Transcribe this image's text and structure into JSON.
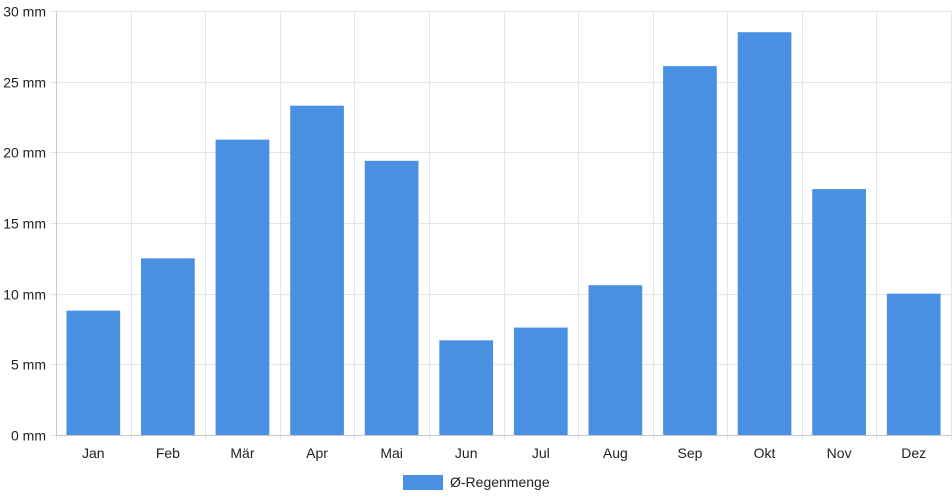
{
  "chart_data": {
    "type": "bar",
    "categories": [
      "Jan",
      "Feb",
      "Mär",
      "Apr",
      "Mai",
      "Jun",
      "Jul",
      "Aug",
      "Sep",
      "Okt",
      "Nov",
      "Dez"
    ],
    "series": [
      {
        "name": "Ø-Regenmenge",
        "values": [
          8.8,
          12.5,
          20.9,
          23.3,
          19.4,
          6.7,
          7.6,
          10.6,
          26.1,
          28.5,
          17.4,
          10.0
        ]
      }
    ],
    "y_ticks": [
      "0 mm",
      "5 mm",
      "10 mm",
      "15 mm",
      "20 mm",
      "25 mm",
      "30 mm"
    ],
    "ylim": [
      0,
      30
    ],
    "grid": true,
    "legend_position": "bottom-center",
    "colors": {
      "bar": "#4a90e2",
      "grid": "#e5e5e5",
      "axis": "#c8c8c8",
      "text": "#222222"
    }
  }
}
